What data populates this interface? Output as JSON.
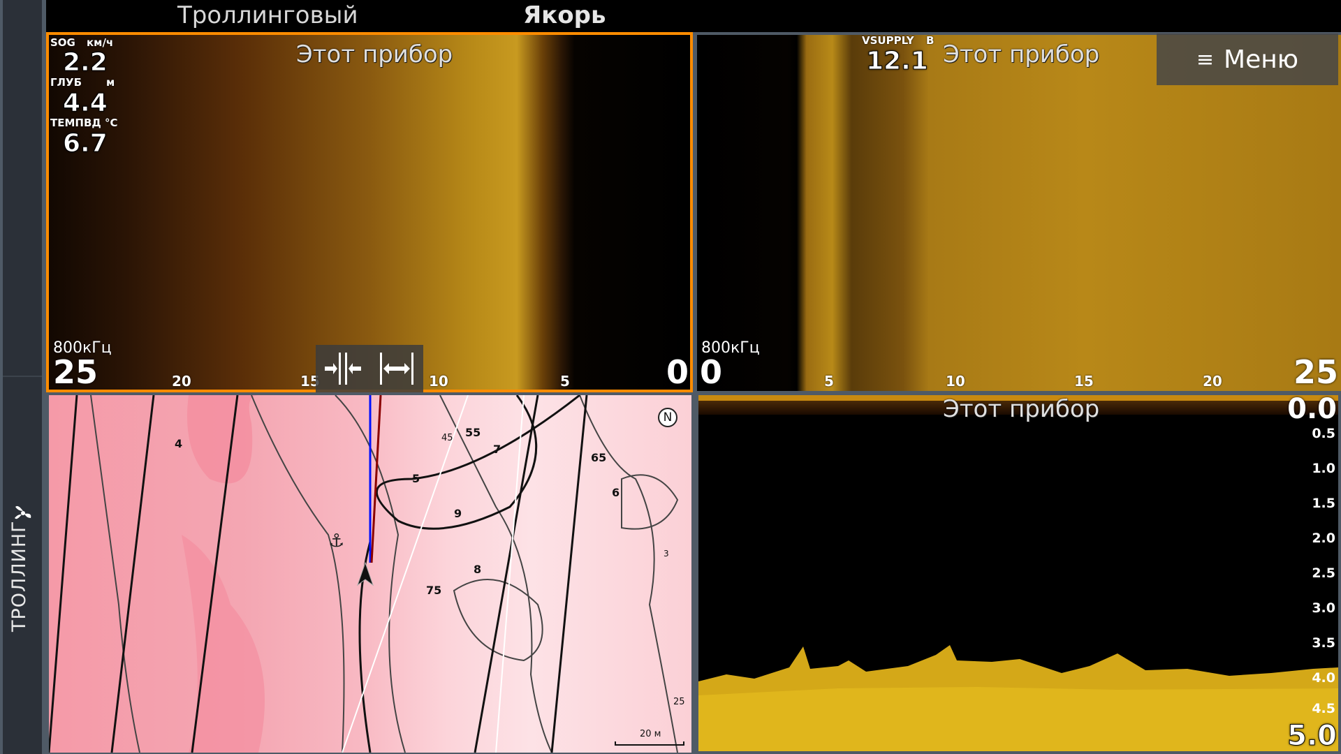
{
  "sidebar": {
    "mode_label": "ТРОЛЛИНГ",
    "mode_icon": "propeller-icon"
  },
  "header": {
    "tabs": [
      {
        "label": "Троллинговый",
        "active": false
      },
      {
        "label": "Якорь",
        "active": true
      }
    ]
  },
  "side_scan_left": {
    "source": "Этот прибор",
    "readouts": [
      {
        "label": "SOG",
        "unit": "км/ч",
        "value": "2.2"
      },
      {
        "label": "ГЛУБ",
        "unit": "м",
        "value": "4.4"
      },
      {
        "label": "ТЕМПВД",
        "unit": "°C",
        "value": "6.7"
      }
    ],
    "frequency": "800кГц",
    "range_start": "25",
    "range_end": "0",
    "ticks": [
      "20",
      "15",
      "10",
      "5"
    ],
    "border_color": "#ff8c00"
  },
  "side_scan_right": {
    "source": "Этот прибор",
    "readout": {
      "label": "VSUPPLY",
      "unit": "В",
      "value": "12.1"
    },
    "frequency": "800кГц",
    "range_start": "0",
    "range_end": "25",
    "ticks": [
      "5",
      "10",
      "15",
      "20"
    ]
  },
  "menu": {
    "label": "Меню",
    "icon": "hamburger-icon"
  },
  "zoom_controls": {
    "zoom_in_icon": "compress-icon",
    "zoom_out_icon": "expand-icon"
  },
  "map": {
    "scale_label": "20 м",
    "north_label": "N",
    "depth_labels": [
      "3",
      "25",
      "45",
      "4",
      "5",
      "55",
      "6",
      "65",
      "7",
      "75",
      "8",
      "9"
    ]
  },
  "downscan": {
    "source": "This device",
    "source_label": "Этот прибор",
    "depth_top": "0.0",
    "depth_bottom": "5.0",
    "depth_ticks": [
      "0.5",
      "1.0",
      "1.5",
      "2.0",
      "2.5",
      "3.0",
      "3.5",
      "4.0",
      "4.5"
    ]
  }
}
